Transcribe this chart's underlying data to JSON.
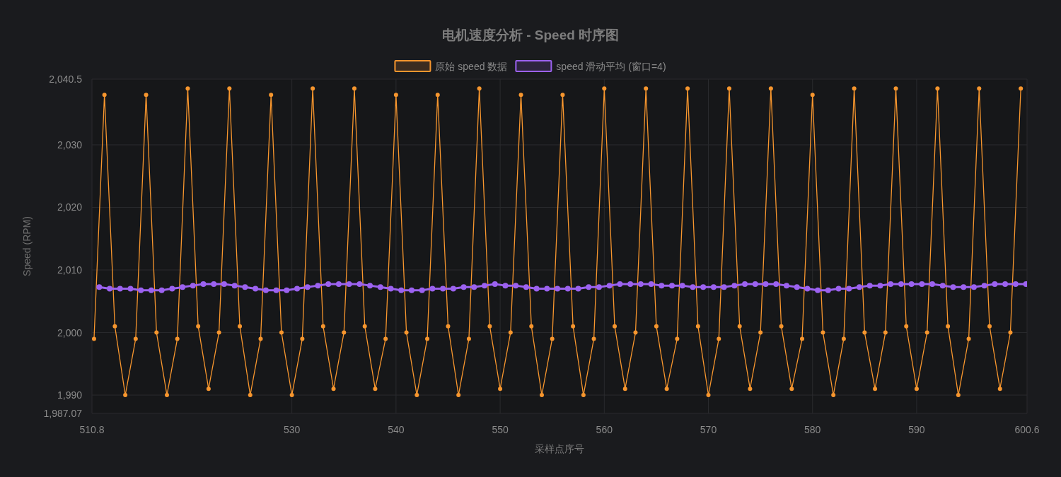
{
  "chart_data": {
    "type": "line",
    "title": "电机速度分析 - Speed 时序图",
    "xlabel": "采样点序号",
    "ylabel": "Speed (RPM)",
    "legend": "top",
    "grid": true,
    "marker": "circle",
    "xlim": [
      510.8,
      600.6
    ],
    "xticks": [
      510.8,
      530,
      540,
      550,
      560,
      570,
      580,
      590,
      600.6
    ],
    "ylim": [
      1987.07,
      2040.5
    ],
    "yticks": [
      {
        "value": 1987.07,
        "label": "1,987.07"
      },
      {
        "value": 1990,
        "label": "1,990"
      },
      {
        "value": 2000,
        "label": "2,000"
      },
      {
        "value": 2010,
        "label": "2,010"
      },
      {
        "value": 2020,
        "label": "2,020"
      },
      {
        "value": 2030,
        "label": "2,030"
      },
      {
        "value": 2040.5,
        "label": "2,040.5"
      }
    ],
    "series": [
      {
        "name": "原始 speed 数据",
        "color": "#f7962e",
        "x": [
          511,
          512,
          513,
          514,
          515,
          516,
          517,
          518,
          519,
          520,
          521,
          522,
          523,
          524,
          525,
          526,
          527,
          528,
          529,
          530,
          531,
          532,
          533,
          534,
          535,
          536,
          537,
          538,
          539,
          540,
          541,
          542,
          543,
          544,
          545,
          546,
          547,
          548,
          549,
          550,
          551,
          552,
          553,
          554,
          555,
          556,
          557,
          558,
          559,
          560,
          561,
          562,
          563,
          564,
          565,
          566,
          567,
          568,
          569,
          570,
          571,
          572,
          573,
          574,
          575,
          576,
          577,
          578,
          579,
          580,
          581,
          582,
          583,
          584,
          585,
          586,
          587,
          588,
          589,
          590,
          591,
          592,
          593,
          594,
          595,
          596,
          597,
          598,
          599,
          600
        ],
        "values": [
          1999,
          2038,
          2001,
          1990,
          1999,
          2038,
          2000,
          1990,
          1999,
          2039,
          2001,
          1991,
          2000,
          2039,
          2001,
          1990,
          1999,
          2038,
          2000,
          1990,
          1999,
          2039,
          2001,
          1991,
          2000,
          2039,
          2001,
          1991,
          1999,
          2038,
          2000,
          1990,
          1999,
          2038,
          2001,
          1990,
          1999,
          2039,
          2001,
          1991,
          2000,
          2038,
          2001,
          1990,
          1999,
          2038,
          2001,
          1990,
          1999,
          2039,
          2001,
          1991,
          2000,
          2039,
          2001,
          1991,
          1999,
          2039,
          2001,
          1990,
          1999,
          2039,
          2001,
          1991,
          2000,
          2039,
          2001,
          1991,
          1999,
          2038,
          2000,
          1990,
          1999,
          2039,
          2000,
          1991,
          2000,
          2039,
          2001,
          1991,
          2000,
          2039,
          2001,
          1990,
          1999,
          2039,
          2001,
          1991,
          2000,
          2039
        ]
      },
      {
        "name": "speed 滑动平均 (窗口=4)",
        "color": "#9c62f0",
        "x": [
          511.5,
          512.5,
          513.5,
          514.5,
          515.5,
          516.5,
          517.5,
          518.5,
          519.5,
          520.5,
          521.5,
          522.5,
          523.5,
          524.5,
          525.5,
          526.5,
          527.5,
          528.5,
          529.5,
          530.5,
          531.5,
          532.5,
          533.5,
          534.5,
          535.5,
          536.5,
          537.5,
          538.5,
          539.5,
          540.5,
          541.5,
          542.5,
          543.5,
          544.5,
          545.5,
          546.5,
          547.5,
          548.5,
          549.5,
          550.5,
          551.5,
          552.5,
          553.5,
          554.5,
          555.5,
          556.5,
          557.5,
          558.5,
          559.5,
          560.5,
          561.5,
          562.5,
          563.5,
          564.5,
          565.5,
          566.5,
          567.5,
          568.5,
          569.5,
          570.5,
          571.5,
          572.5,
          573.5,
          574.5,
          575.5,
          576.5,
          577.5,
          578.5,
          579.5,
          580.5,
          581.5,
          582.5,
          583.5,
          584.5,
          585.5,
          586.5,
          587.5,
          588.5,
          589.5,
          590.5,
          591.5,
          592.5,
          593.5,
          594.5,
          595.5,
          596.5,
          597.5,
          598.5,
          599.5,
          600.5
        ],
        "values": [
          2007.25,
          2007,
          2007,
          2007,
          2006.75,
          2006.75,
          2006.75,
          2007,
          2007.25,
          2007.5,
          2007.75,
          2007.75,
          2007.75,
          2007.5,
          2007.25,
          2007,
          2006.75,
          2006.75,
          2006.75,
          2007,
          2007.25,
          2007.5,
          2007.75,
          2007.75,
          2007.75,
          2007.75,
          2007.5,
          2007.25,
          2007,
          2006.75,
          2006.75,
          2006.75,
          2007,
          2007,
          2007,
          2007.25,
          2007.25,
          2007.5,
          2007.75,
          2007.5,
          2007.5,
          2007.25,
          2007,
          2007,
          2007,
          2007,
          2007,
          2007.25,
          2007.25,
          2007.5,
          2007.75,
          2007.75,
          2007.75,
          2007.75,
          2007.5,
          2007.5,
          2007.5,
          2007.25,
          2007.25,
          2007.25,
          2007.25,
          2007.5,
          2007.75,
          2007.75,
          2007.75,
          2007.75,
          2007.5,
          2007.25,
          2007,
          2006.75,
          2006.75,
          2007,
          2007,
          2007.25,
          2007.5,
          2007.5,
          2007.75,
          2007.75,
          2007.75,
          2007.75,
          2007.75,
          2007.5,
          2007.25,
          2007.25,
          2007.25,
          2007.5,
          2007.75,
          2007.75,
          2007.75,
          2007.75
        ]
      }
    ]
  }
}
